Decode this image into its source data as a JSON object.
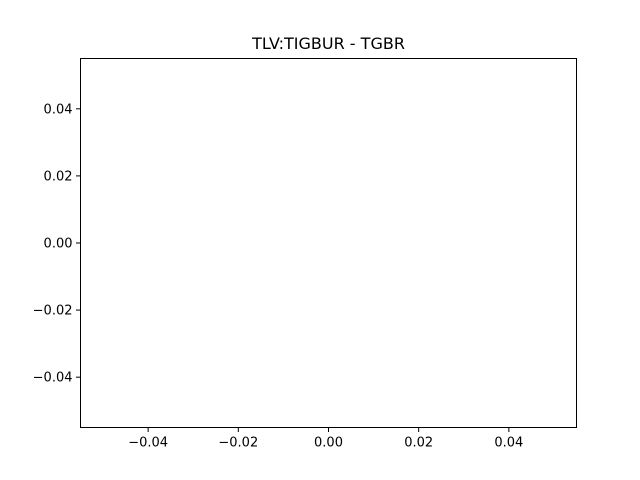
{
  "chart_data": {
    "type": "line",
    "title": "TLV:TIGBUR - TGBR",
    "xlabel": "",
    "ylabel": "",
    "series": [
      {
        "x": [],
        "y": []
      }
    ],
    "xlim": [
      -0.055,
      0.055
    ],
    "ylim": [
      -0.055,
      0.055
    ],
    "x_ticks": [
      -0.04,
      -0.02,
      0.0,
      0.02,
      0.04
    ],
    "y_ticks": [
      -0.04,
      -0.02,
      0.0,
      0.02,
      0.04
    ],
    "x_tick_labels": [
      "−0.04",
      "−0.02",
      "0.00",
      "0.02",
      "0.04"
    ],
    "y_tick_labels": [
      "−0.04",
      "−0.02",
      "0.00",
      "0.02",
      "0.04"
    ],
    "grid": false,
    "legend": "none"
  }
}
